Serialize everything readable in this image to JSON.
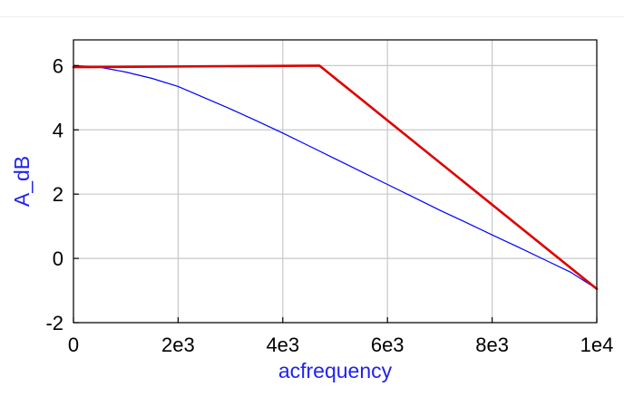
{
  "chart_data": {
    "type": "line",
    "xlabel": "acfrequency",
    "ylabel": "A_dB",
    "xlim": [
      0,
      10000
    ],
    "ylim": [
      -2,
      6.8
    ],
    "x_ticks": [
      {
        "value": 0,
        "label": "0"
      },
      {
        "value": 2000,
        "label": "2e3"
      },
      {
        "value": 4000,
        "label": "4e3"
      },
      {
        "value": 6000,
        "label": "6e3"
      },
      {
        "value": 8000,
        "label": "8e3"
      },
      {
        "value": 10000,
        "label": "1e4"
      }
    ],
    "y_ticks": [
      {
        "value": -2,
        "label": "-2"
      },
      {
        "value": 0,
        "label": "0"
      },
      {
        "value": 2,
        "label": "2"
      },
      {
        "value": 4,
        "label": "4"
      },
      {
        "value": 6,
        "label": "6"
      }
    ],
    "grid": true,
    "series": [
      {
        "color": "#0000ff",
        "stroke_width": 1.2,
        "x": [
          0,
          500,
          1000,
          1500,
          2000,
          2500,
          3000,
          3500,
          4000,
          4500,
          5000,
          5500,
          6000,
          6500,
          7000,
          7500,
          8000,
          8500,
          9000,
          9500,
          10000
        ],
        "y": [
          6.0,
          5.95,
          5.8,
          5.6,
          5.35,
          5.0,
          4.65,
          4.28,
          3.9,
          3.5,
          3.1,
          2.7,
          2.3,
          1.9,
          1.5,
          1.12,
          0.73,
          0.35,
          -0.04,
          -0.43,
          -0.95
        ]
      },
      {
        "color": "#dd0000",
        "stroke_width": 2.6,
        "x": [
          0,
          4700,
          10000
        ],
        "y": [
          5.95,
          6.0,
          -0.95
        ]
      }
    ]
  }
}
